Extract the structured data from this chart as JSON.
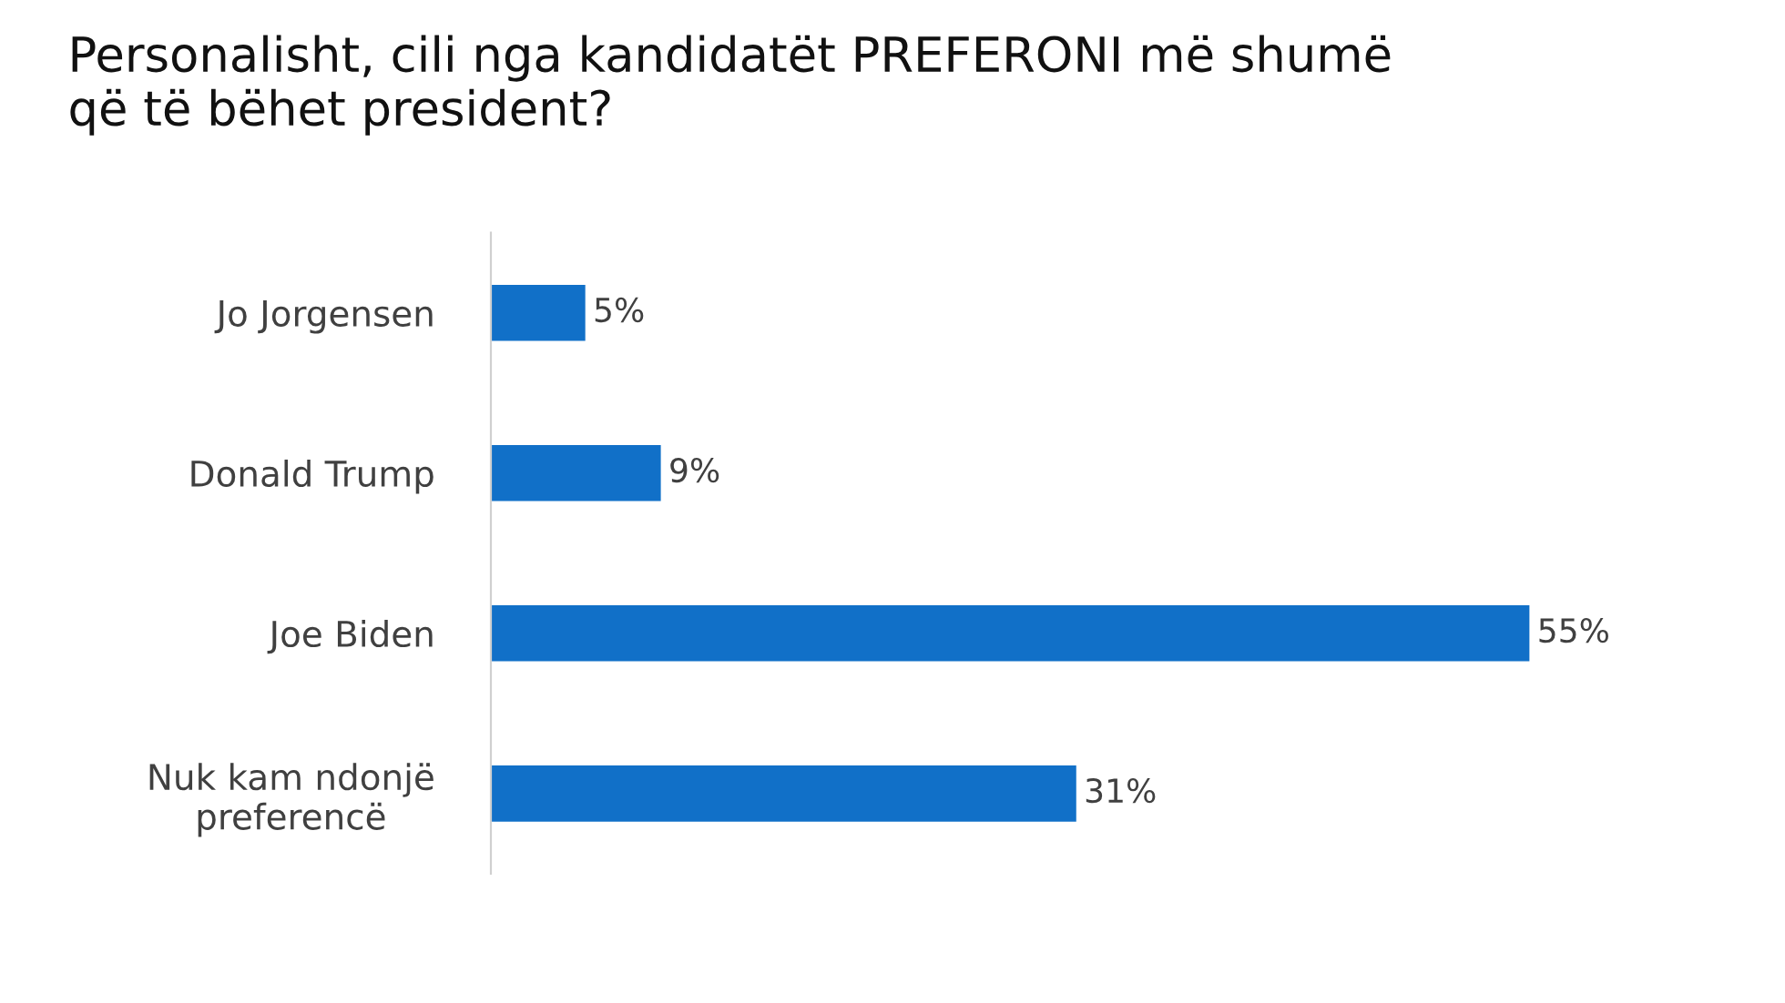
{
  "chart_data": {
    "type": "bar",
    "orientation": "horizontal",
    "title": "Personalisht, cili nga kandidatët PREFERONI më shumë\nqë të bëhet president?",
    "categories": [
      "Jo Jorgensen",
      "Donald Trump",
      "Joe Biden",
      "Nuk kam ndonjë\npreferencë"
    ],
    "values": [
      5,
      9,
      55,
      31
    ],
    "value_labels": [
      "5%",
      "9%",
      "55%",
      "31%"
    ],
    "color": "#1170c8",
    "grid": false,
    "legend": false
  }
}
